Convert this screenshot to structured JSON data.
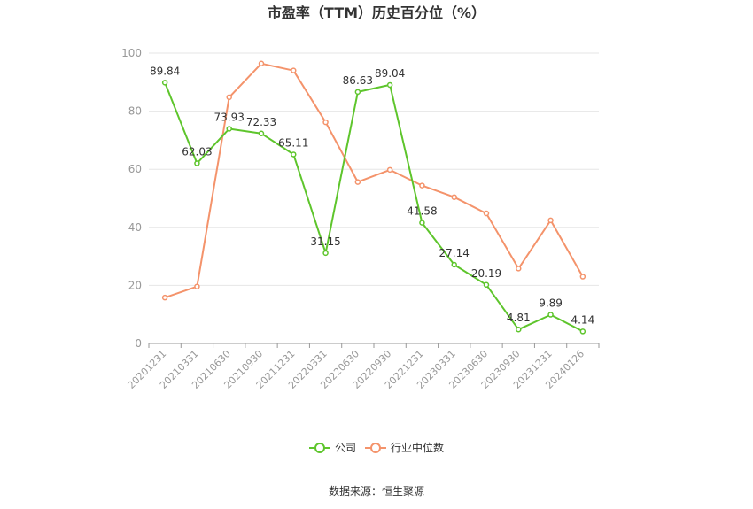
{
  "chart_data": {
    "type": "line",
    "title": "市盈率（TTM）历史百分位（%）",
    "categories": [
      "20201231",
      "20210331",
      "20210630",
      "20210930",
      "20211231",
      "20220331",
      "20220630",
      "20220930",
      "20221231",
      "20230331",
      "20230630",
      "20230930",
      "20231231",
      "20240126"
    ],
    "ylim": [
      0,
      100
    ],
    "yticks": [
      0,
      20,
      40,
      60,
      80,
      100
    ],
    "grid": true,
    "legend_position": "bottom",
    "series": [
      {
        "name": "公司",
        "color": "#5ec52c",
        "show_labels": true,
        "values": [
          89.84,
          62.03,
          73.93,
          72.33,
          65.11,
          31.15,
          86.63,
          89.04,
          41.58,
          27.14,
          20.19,
          4.81,
          9.89,
          4.14
        ]
      },
      {
        "name": "行业中位数",
        "color": "#f4936b",
        "show_labels": false,
        "values": [
          15.8,
          19.6,
          84.8,
          96.4,
          94.0,
          76.2,
          55.6,
          59.8,
          54.4,
          50.4,
          44.8,
          25.8,
          42.4,
          23.0
        ]
      }
    ]
  },
  "source": "数据来源：恒生聚源"
}
